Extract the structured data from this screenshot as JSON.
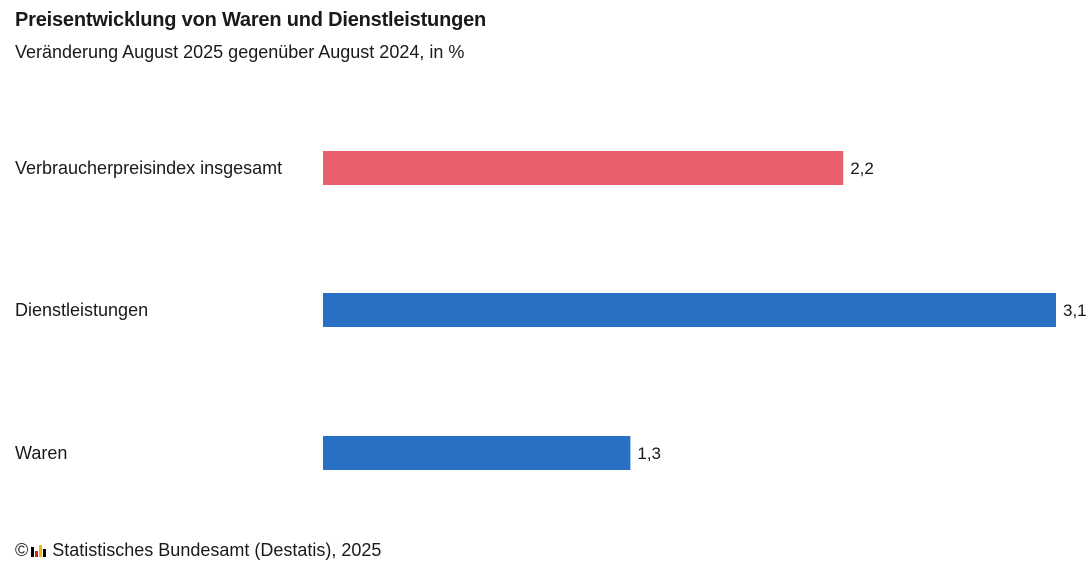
{
  "title": "Preisentwicklung von Waren und Dienstleistungen",
  "subtitle": "Veränderung August 2025 gegenüber August 2024, in %",
  "source": {
    "copyright": "©",
    "text": "Statistisches Bundesamt (Destatis), 2025"
  },
  "chart_data": {
    "type": "bar",
    "orientation": "horizontal",
    "categories": [
      "Verbraucherpreisindex insgesamt",
      "Dienstleistungen",
      "Waren"
    ],
    "values": [
      2.2,
      3.1,
      1.3
    ],
    "value_labels": [
      "2,2",
      "3,1",
      "1,3"
    ],
    "colors": [
      "#e8606e",
      "#2870c4",
      "#2870c4"
    ],
    "xlim": [
      0,
      3.1
    ],
    "grid": false,
    "legend": "none"
  }
}
